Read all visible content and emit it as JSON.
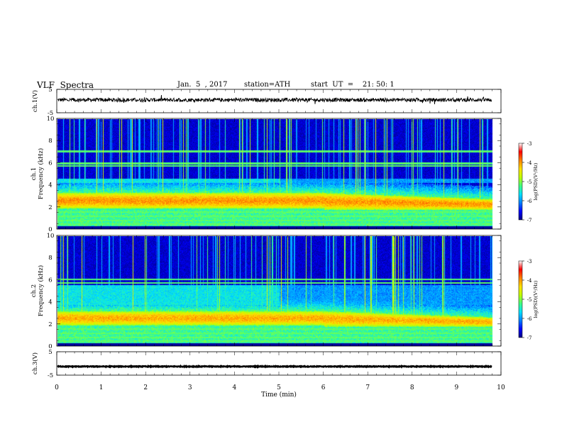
{
  "header": {
    "title": "VLF  Spectra",
    "date": "Jan.  5  , 2017",
    "station": "station=ATH",
    "start": "start  UT  =    21: 50: 1"
  },
  "colors": {
    "colormap": [
      "#000080",
      "#0000ff",
      "#0080ff",
      "#00e0ff",
      "#40ff80",
      "#c0ff00",
      "#ffe000",
      "#ff8000",
      "#ff0000",
      "#ffffff"
    ],
    "trace": "#000000",
    "background": "#00005a"
  },
  "chart_data": [
    {
      "type": "line",
      "ylabel": "ch.1(V)",
      "ylim": [
        -5,
        5
      ],
      "yticks": [
        "5",
        "-5"
      ],
      "xlim": [
        0,
        10
      ],
      "baseline": 0.5,
      "noise_amplitude": 0.8
    },
    {
      "type": "heatmap",
      "ylabel_line1": "ch.1",
      "ylabel_line2": "Frequency  (kHz)",
      "ylim": [
        0,
        10
      ],
      "yticks": [
        "0",
        "2",
        "4",
        "6",
        "8",
        "10"
      ],
      "xlim": [
        0,
        10
      ],
      "colorbar": {
        "label": "log(PSD)(V²/Hz)",
        "range": [
          -7,
          -3
        ],
        "ticks": [
          "-3",
          "-4",
          "-5",
          "-6",
          "-7"
        ]
      },
      "features": {
        "main_band_kHz": [
          1.9,
          3.3
        ],
        "main_band_peak_log": -4.0,
        "secondary_band_kHz": [
          4.2,
          4.6
        ],
        "lines_kHz": [
          0.5,
          0.8,
          1.2,
          1.6,
          5.8,
          6.0,
          7.1
        ],
        "data_end_min": 9.8
      }
    },
    {
      "type": "heatmap",
      "ylabel_line1": "ch.2",
      "ylabel_line2": "Frequency  (kHz)",
      "ylim": [
        0,
        10
      ],
      "yticks": [
        "0",
        "2",
        "4",
        "6",
        "8",
        "10"
      ],
      "xlim": [
        0,
        10
      ],
      "colorbar": {
        "label": "log(PSD)(V²/Hz)",
        "range": [
          -7,
          -3
        ],
        "ticks": [
          "-3",
          "-4",
          "-5",
          "-6",
          "-7"
        ]
      },
      "features": {
        "main_band_kHz": [
          1.9,
          3.2
        ],
        "main_band_peak_log": -4.1,
        "secondary_band_kHz": [
          3.8,
          5.6
        ],
        "lines_kHz": [
          0.5,
          0.8,
          1.2,
          1.6,
          5.8,
          6.1
        ],
        "data_end_min": 9.8
      }
    },
    {
      "type": "line",
      "ylabel": "ch.3(V)",
      "ylim": [
        -5,
        5
      ],
      "yticks": [
        "5",
        "-5"
      ],
      "xlim": [
        0,
        10
      ],
      "xlabel": "Time  (min)",
      "xticks": [
        "0",
        "1",
        "2",
        "3",
        "4",
        "5",
        "6",
        "7",
        "8",
        "9",
        "10"
      ],
      "baseline": -1.3,
      "noise_amplitude": 0.15
    }
  ]
}
